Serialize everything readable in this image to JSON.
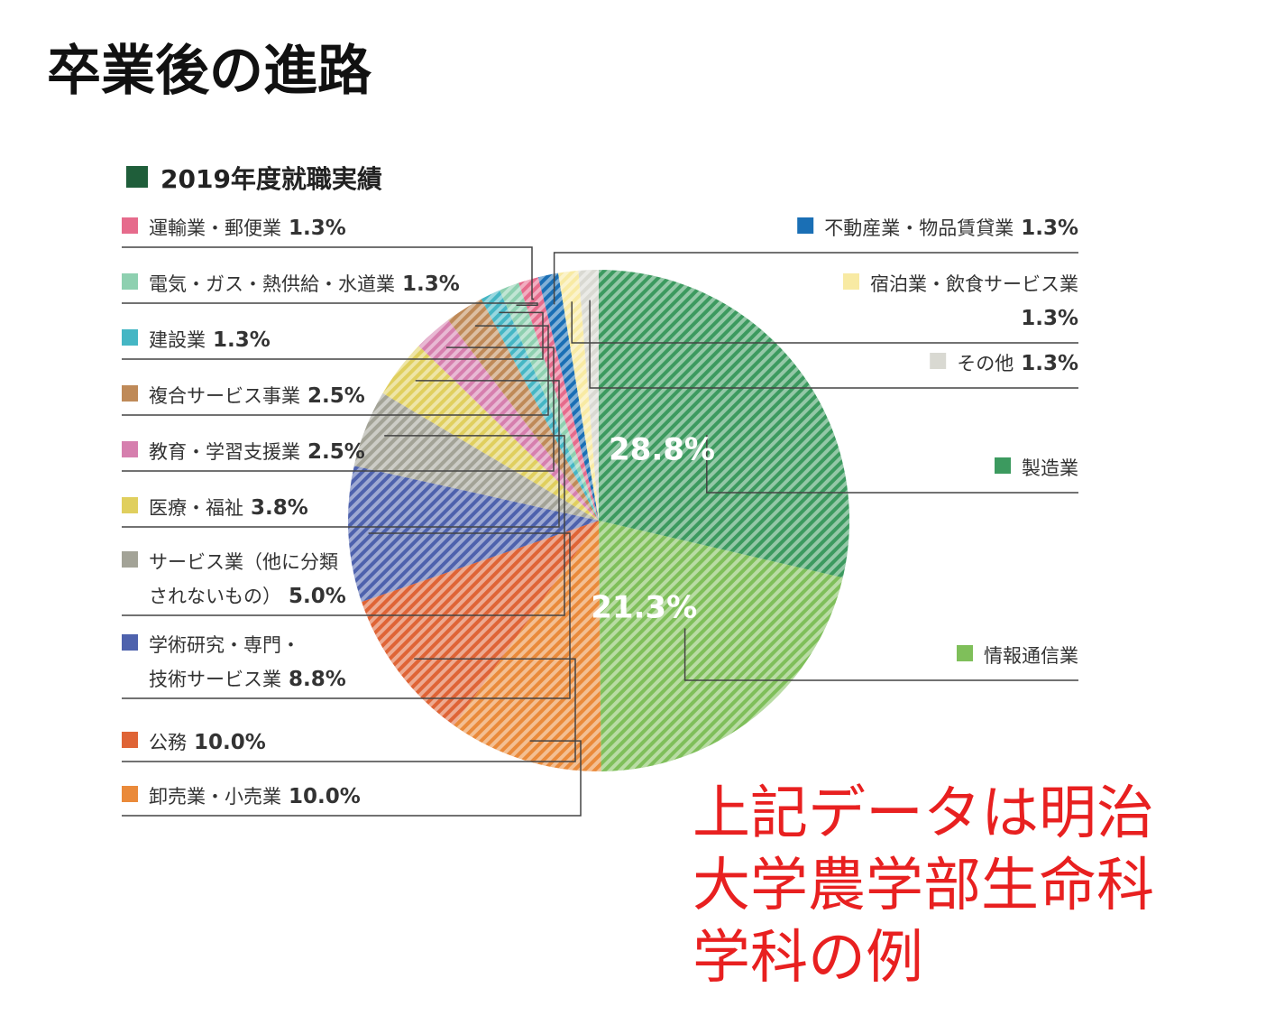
{
  "page": {
    "title": "卒業後の進路",
    "note": "上記データは明治\n大学農学部生命科\n学科の例"
  },
  "chart_data": {
    "type": "pie",
    "title": "2019年度就職実績",
    "title_marker_color": "#1f5e3a",
    "slices": [
      {
        "label": "製造業",
        "value": 28.8,
        "value_text": "28.8%",
        "color": "#3c9a5f",
        "legend_side": "right"
      },
      {
        "label": "情報通信業",
        "value": 21.3,
        "value_text": "21.3%",
        "color": "#7fbf5a",
        "legend_side": "right"
      },
      {
        "label": "卸売業・小売業",
        "value": 10.0,
        "value_text": "10.0%",
        "color": "#ea8a3a",
        "legend_side": "left"
      },
      {
        "label": "公務",
        "value": 10.0,
        "value_text": "10.0%",
        "color": "#df6436",
        "legend_side": "left"
      },
      {
        "label": "学術研究・専門・\n技術サービス業",
        "value": 8.8,
        "value_text": "8.8%",
        "color": "#4e62ad",
        "legend_side": "left"
      },
      {
        "label": "サービス業（他に分類\nされないもの）",
        "value": 5.0,
        "value_text": "5.0%",
        "color": "#a3a397",
        "legend_side": "left"
      },
      {
        "label": "医療・福祉",
        "value": 3.8,
        "value_text": "3.8%",
        "color": "#e0cf5e",
        "legend_side": "left"
      },
      {
        "label": "教育・学習支援業",
        "value": 2.5,
        "value_text": "2.5%",
        "color": "#d67fae",
        "legend_side": "left"
      },
      {
        "label": "複合サービス事業",
        "value": 2.5,
        "value_text": "2.5%",
        "color": "#bf8a58",
        "legend_side": "left"
      },
      {
        "label": "建設業",
        "value": 1.3,
        "value_text": "1.3%",
        "color": "#45b6c4",
        "legend_side": "left"
      },
      {
        "label": "電気・ガス・熱供給・水道業",
        "value": 1.3,
        "value_text": "1.3%",
        "color": "#8ed0b0",
        "legend_side": "left"
      },
      {
        "label": "運輸業・郵便業",
        "value": 1.3,
        "value_text": "1.3%",
        "color": "#e66b8c",
        "legend_side": "left"
      },
      {
        "label": "不動産業・物品賃貸業",
        "value": 1.3,
        "value_text": "1.3%",
        "color": "#1a6fb5",
        "legend_side": "right"
      },
      {
        "label": "宿泊業・飲食サービス業",
        "value": 1.3,
        "value_text": "1.3%",
        "color": "#f8eaa3",
        "legend_side": "right"
      },
      {
        "label": "その他",
        "value": 1.3,
        "value_text": "1.3%",
        "color": "#d9d9d2",
        "legend_side": "right"
      }
    ]
  }
}
